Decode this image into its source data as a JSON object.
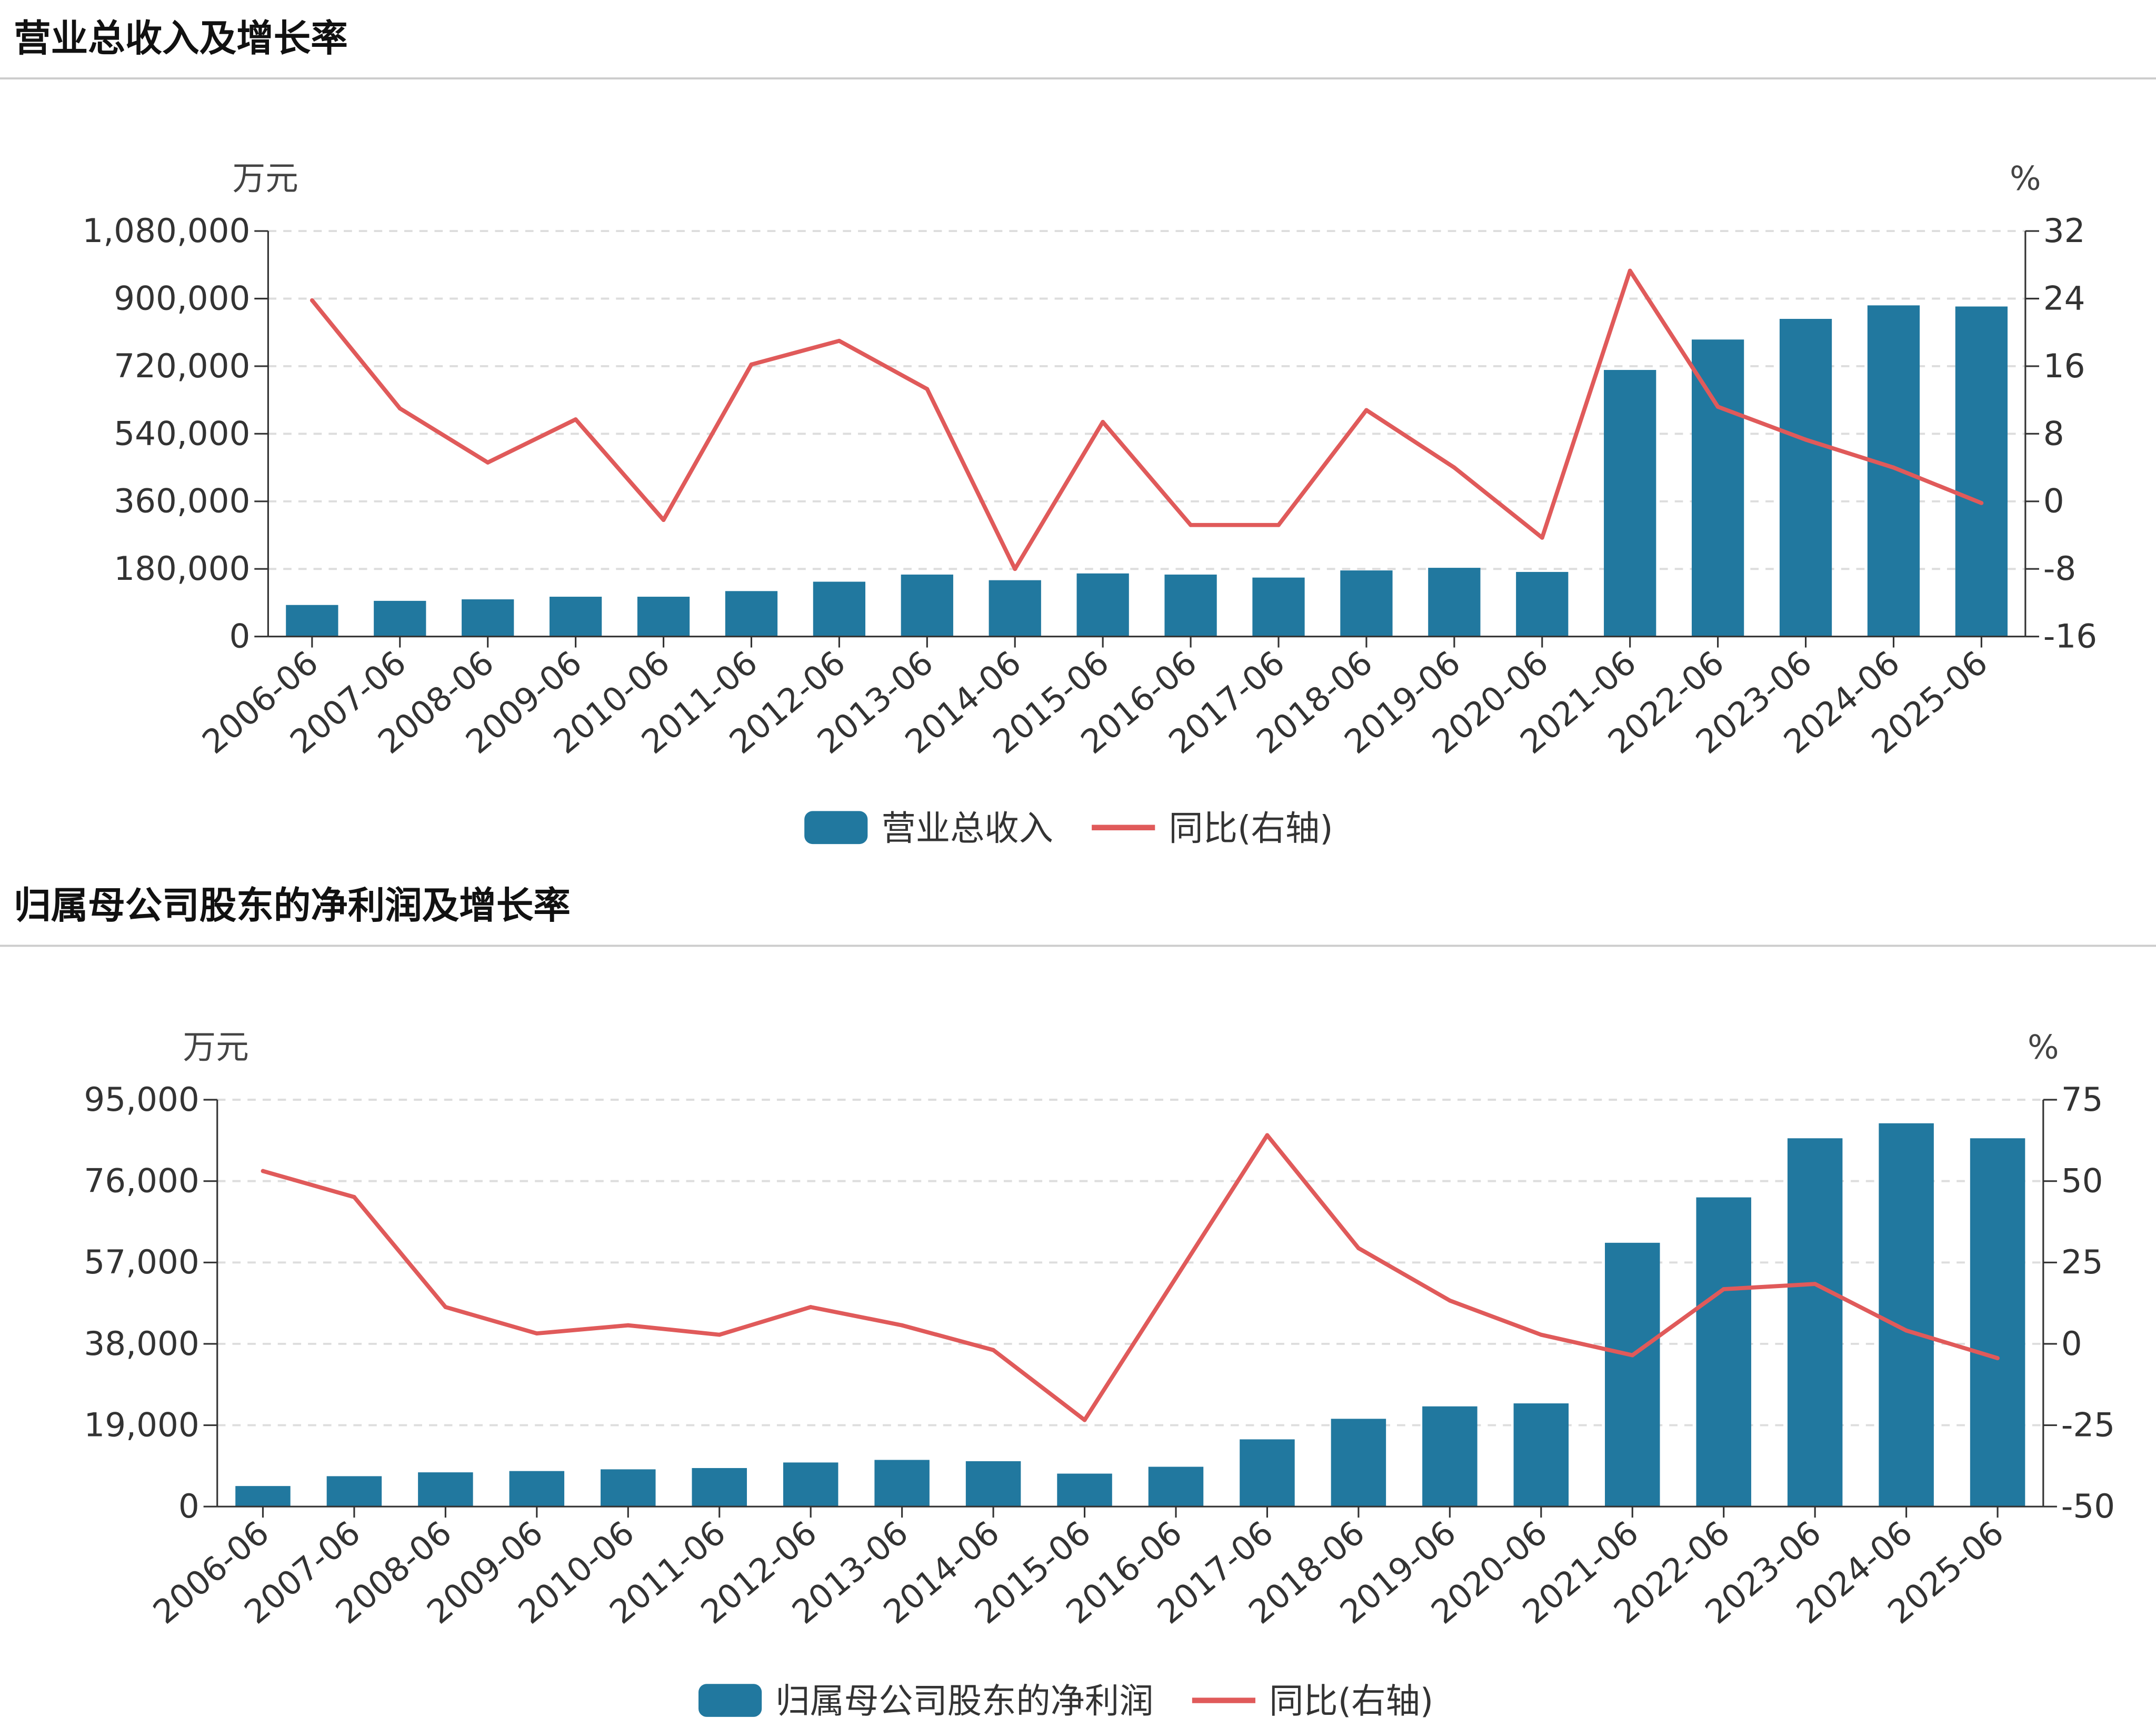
{
  "colors": {
    "bar": "#21789f",
    "line": "#e05a5a",
    "grid": "#dddddd",
    "axis": "#333333"
  },
  "chart_data": [
    {
      "type": "bar+line",
      "title": "营业总收入及增长率",
      "ylabel": "万元",
      "y2label": "%",
      "categories": [
        "2006-06",
        "2007-06",
        "2008-06",
        "2009-06",
        "2010-06",
        "2011-06",
        "2012-06",
        "2013-06",
        "2014-06",
        "2015-06",
        "2016-06",
        "2017-06",
        "2018-06",
        "2019-06",
        "2020-06",
        "2021-06",
        "2022-06",
        "2023-06",
        "2024-06",
        "2025-06"
      ],
      "ylim": [
        0,
        1080000
      ],
      "y_ticks": [
        "0",
        "180,000",
        "360,000",
        "540,000",
        "720,000",
        "900,000",
        "1,080,000"
      ],
      "y2lim": [
        -16,
        32
      ],
      "y2_ticks": [
        "-16",
        "-8",
        "0",
        "8",
        "16",
        "24",
        "32"
      ],
      "series": [
        {
          "name": "营业总收入",
          "type": "bar",
          "axis": "left",
          "values": [
            84000,
            95000,
            99000,
            106000,
            106000,
            121000,
            146000,
            165000,
            150000,
            168000,
            165000,
            157000,
            176000,
            183000,
            172000,
            710000,
            791000,
            846000,
            882000,
            879000
          ]
        },
        {
          "name": "同比(右轴)",
          "type": "line",
          "axis": "right",
          "values": [
            23.8,
            11.0,
            4.6,
            9.7,
            -2.2,
            16.2,
            19.0,
            13.3,
            -8.0,
            9.4,
            -2.8,
            -2.8,
            10.8,
            4.0,
            -4.3,
            27.3,
            11.2,
            7.3,
            4.0,
            -0.2
          ]
        }
      ],
      "grid": true,
      "legend": "bottom"
    },
    {
      "type": "bar+line",
      "title": "归属母公司股东的净利润及增长率",
      "ylabel": "万元",
      "y2label": "%",
      "categories": [
        "2006-06",
        "2007-06",
        "2008-06",
        "2009-06",
        "2010-06",
        "2011-06",
        "2012-06",
        "2013-06",
        "2014-06",
        "2015-06",
        "2016-06",
        "2017-06",
        "2018-06",
        "2019-06",
        "2020-06",
        "2021-06",
        "2022-06",
        "2023-06",
        "2024-06",
        "2025-06"
      ],
      "ylim": [
        0,
        95000
      ],
      "y_ticks": [
        "0",
        "19,000",
        "38,000",
        "57,000",
        "76,000",
        "95,000"
      ],
      "y2lim": [
        -50,
        75
      ],
      "y2_ticks": [
        "-50",
        "-25",
        "0",
        "25",
        "50",
        "75"
      ],
      "series": [
        {
          "name": "归属母公司股东的净利润",
          "type": "bar",
          "axis": "left",
          "values": [
            4800,
            7100,
            8000,
            8300,
            8700,
            9000,
            10300,
            10900,
            10600,
            7700,
            9300,
            15700,
            20500,
            23400,
            24100,
            61600,
            72200,
            86000,
            89500,
            86000
          ]
        },
        {
          "name": "同比(右轴)",
          "type": "line",
          "axis": "right",
          "values": [
            53.1,
            45.1,
            11.3,
            3.2,
            5.7,
            2.8,
            11.3,
            5.7,
            -1.9,
            -23.4,
            20.3,
            64.1,
            29.4,
            13.3,
            2.8,
            -3.5,
            16.8,
            18.4,
            4.1,
            -4.4
          ]
        }
      ],
      "grid": true,
      "legend": "bottom"
    }
  ]
}
